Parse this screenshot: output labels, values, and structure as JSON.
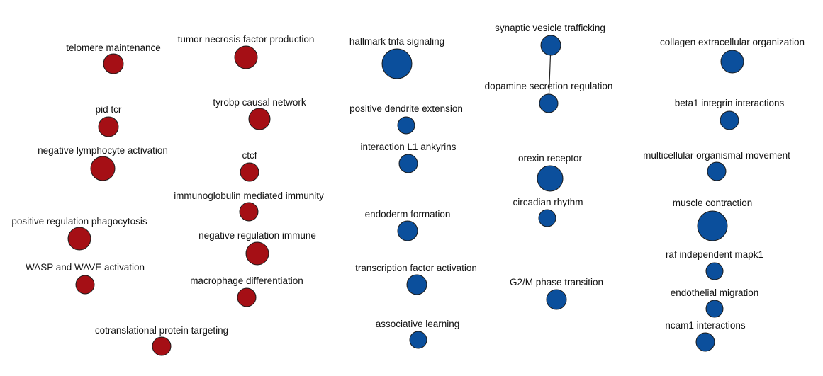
{
  "colors": {
    "up": "#a50f15",
    "down": "#0b4f9c",
    "edge": "#222222",
    "label": "#111111"
  },
  "nodes": [
    {
      "id": "telomere-maintenance",
      "label": "telomere maintenance",
      "group": "up"
    },
    {
      "id": "tumor-necrosis-factor-production",
      "label": "tumor necrosis factor production",
      "group": "up"
    },
    {
      "id": "pid-tcr",
      "label": "pid tcr",
      "group": "up"
    },
    {
      "id": "tyrobp-causal-network",
      "label": "tyrobp causal network",
      "group": "up"
    },
    {
      "id": "negative-lymphocyte-activation",
      "label": "negative lymphocyte activation",
      "group": "up"
    },
    {
      "id": "ctcf",
      "label": "ctcf",
      "group": "up"
    },
    {
      "id": "immunoglobulin-mediated-immunity",
      "label": "immunoglobulin mediated immunity",
      "group": "up"
    },
    {
      "id": "positive-regulation-phagocytosis",
      "label": "positive regulation phagocytosis",
      "group": "up"
    },
    {
      "id": "negative-regulation-immune",
      "label": "negative regulation immune",
      "group": "up"
    },
    {
      "id": "wasp-and-wave-activation",
      "label": "WASP and WAVE activation",
      "group": "up"
    },
    {
      "id": "macrophage-differentiation",
      "label": "macrophage differentiation",
      "group": "up"
    },
    {
      "id": "cotranslational-protein-targeting",
      "label": "cotranslational protein targeting",
      "group": "up"
    },
    {
      "id": "hallmark-tnfa-signaling",
      "label": "hallmark tnfa signaling",
      "group": "down"
    },
    {
      "id": "positive-dendrite-extension",
      "label": "positive dendrite extension",
      "group": "down"
    },
    {
      "id": "interaction-l1-ankyrins",
      "label": "interaction L1 ankyrins",
      "group": "down"
    },
    {
      "id": "endoderm-formation",
      "label": "endoderm formation",
      "group": "down"
    },
    {
      "id": "transcription-factor-activation",
      "label": "transcription factor activation",
      "group": "down"
    },
    {
      "id": "associative-learning",
      "label": "associative learning",
      "group": "down"
    },
    {
      "id": "synaptic-vesicle-trafficking",
      "label": "synaptic vesicle trafficking",
      "group": "down"
    },
    {
      "id": "dopamine-secretion-regulation",
      "label": "dopamine secretion regulation",
      "group": "down"
    },
    {
      "id": "orexin-receptor",
      "label": "orexin receptor",
      "group": "down"
    },
    {
      "id": "circadian-rhythm",
      "label": "circadian rhythm",
      "group": "down"
    },
    {
      "id": "g2m-phase-transition",
      "label": "G2/M phase transition",
      "group": "down"
    },
    {
      "id": "collagen-extracellular-organization",
      "label": "collagen extracellular organization",
      "group": "down"
    },
    {
      "id": "beta1-integrin-interactions",
      "label": "beta1 integrin interactions",
      "group": "down"
    },
    {
      "id": "multicellular-organismal-movement",
      "label": "multicellular organismal movement",
      "group": "down"
    },
    {
      "id": "muscle-contraction",
      "label": "muscle contraction",
      "group": "down"
    },
    {
      "id": "raf-independent-mapk1",
      "label": "raf independent mapk1",
      "group": "down"
    },
    {
      "id": "endothelial-migration",
      "label": "endothelial migration",
      "group": "down"
    },
    {
      "id": "ncam1-interactions",
      "label": "ncam1 interactions",
      "group": "down"
    }
  ],
  "edges": [
    {
      "source": "synaptic-vesicle-trafficking",
      "target": "dopamine-secretion-regulation"
    }
  ]
}
